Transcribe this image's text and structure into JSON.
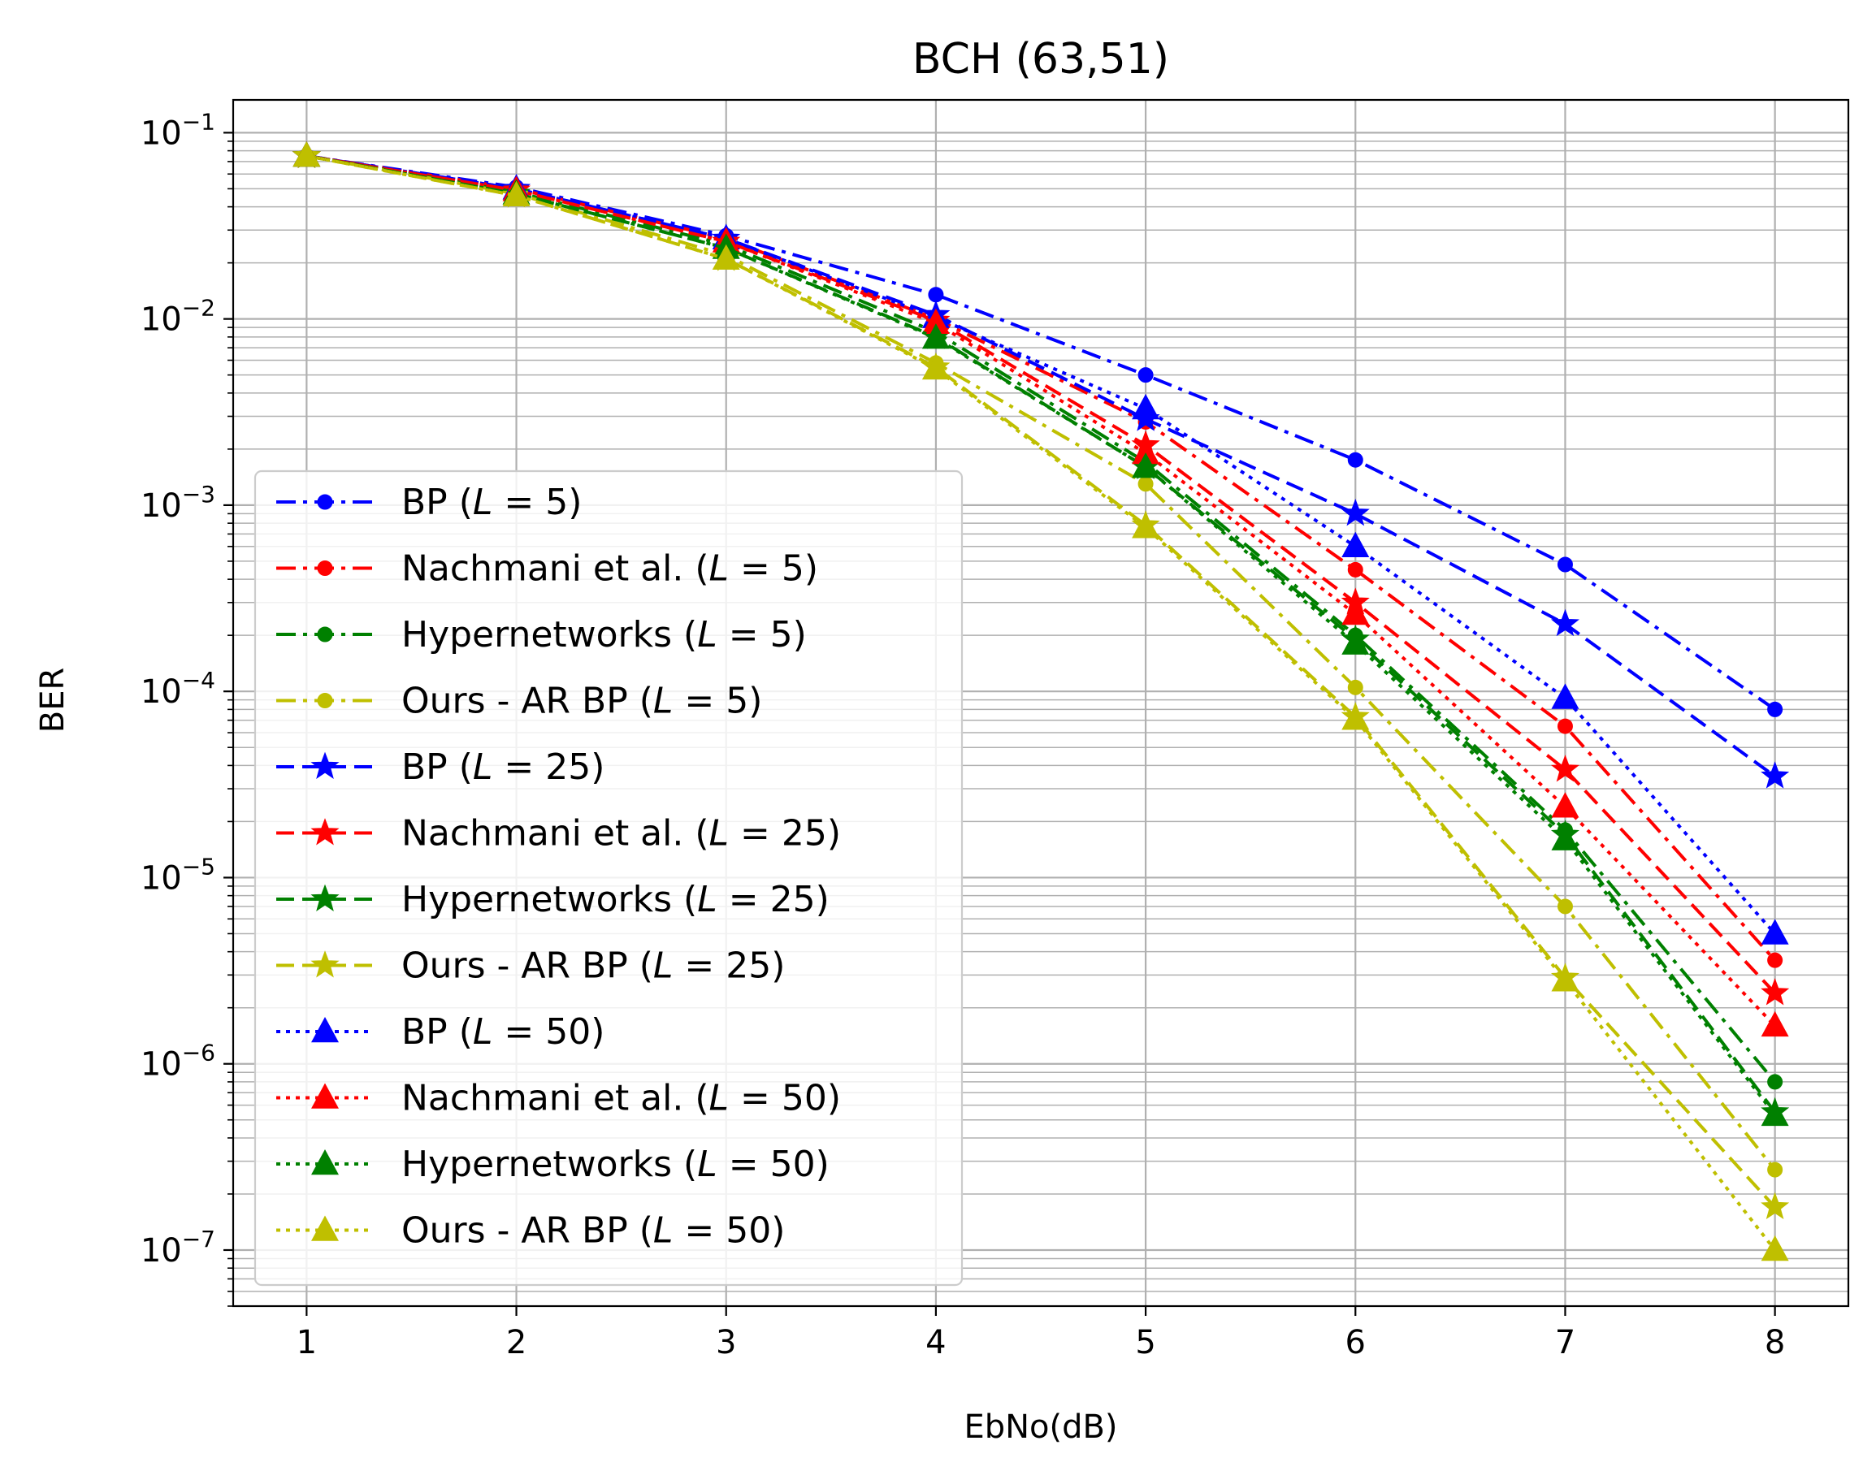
{
  "chart_data": {
    "type": "line",
    "title": "BCH (63,51)",
    "xlabel": "EbNo(dB)",
    "ylabel": "BER",
    "x": [
      1,
      2,
      3,
      4,
      5,
      6,
      7,
      8
    ],
    "xlim": [
      0.65,
      8.35
    ],
    "ylim": [
      5e-08,
      0.15
    ],
    "yscale": "log",
    "grid": "major and minor",
    "legend_position": "lower-left",
    "x_ticks": [
      "1",
      "2",
      "3",
      "4",
      "5",
      "6",
      "7",
      "8"
    ],
    "y_ticks": [
      {
        "base": "10",
        "exp": "−1",
        "value": 0.1
      },
      {
        "base": "10",
        "exp": "−2",
        "value": 0.01
      },
      {
        "base": "10",
        "exp": "−3",
        "value": 0.001
      },
      {
        "base": "10",
        "exp": "−4",
        "value": 0.0001
      },
      {
        "base": "10",
        "exp": "−5",
        "value": 1e-05
      },
      {
        "base": "10",
        "exp": "−6",
        "value": 1e-06
      },
      {
        "base": "10",
        "exp": "−7",
        "value": 1e-07
      }
    ],
    "series": [
      {
        "name": "BP",
        "L": "5",
        "color": "#0000ff",
        "dash": "dashdot",
        "marker": "circle",
        "values": [
          0.075,
          0.051,
          0.028,
          0.0135,
          0.005,
          0.00175,
          0.00048,
          8e-05
        ]
      },
      {
        "name": "Nachmani et al.",
        "L": "5",
        "color": "#ff0000",
        "dash": "dashdot",
        "marker": "circle",
        "values": [
          0.075,
          0.05,
          0.027,
          0.01,
          0.0028,
          0.00045,
          6.5e-05,
          3.6e-06
        ]
      },
      {
        "name": "Hypernetworks",
        "L": "5",
        "color": "#008000",
        "dash": "dashdot",
        "marker": "circle",
        "values": [
          0.075,
          0.048,
          0.025,
          0.0085,
          0.0017,
          0.0002,
          1.8e-05,
          8e-07
        ]
      },
      {
        "name": "Ours - AR BP",
        "L": "5",
        "color": "#bfbf00",
        "dash": "dashdot",
        "marker": "circle",
        "values": [
          0.075,
          0.047,
          0.022,
          0.0058,
          0.0013,
          0.000105,
          7e-06,
          2.7e-07
        ]
      },
      {
        "name": "BP",
        "L": "25",
        "color": "#0000ff",
        "dash": "dashed",
        "marker": "star",
        "values": [
          0.075,
          0.05,
          0.027,
          0.0105,
          0.0029,
          0.0009,
          0.00023,
          3.5e-05
        ]
      },
      {
        "name": "Nachmani et al.",
        "L": "25",
        "color": "#ff0000",
        "dash": "dashed",
        "marker": "star",
        "values": [
          0.075,
          0.049,
          0.026,
          0.0098,
          0.0021,
          0.0003,
          3.8e-05,
          2.4e-06
        ]
      },
      {
        "name": "Hypernetworks",
        "L": "25",
        "color": "#008000",
        "dash": "dashed",
        "marker": "star",
        "values": [
          0.075,
          0.047,
          0.024,
          0.008,
          0.0016,
          0.00019,
          1.7e-05,
          5.5e-07
        ]
      },
      {
        "name": "Ours - AR BP",
        "L": "25",
        "color": "#bfbf00",
        "dash": "dashed",
        "marker": "star",
        "values": [
          0.075,
          0.046,
          0.021,
          0.0055,
          0.00078,
          7.3e-05,
          2.9e-06,
          1.7e-07
        ]
      },
      {
        "name": "BP",
        "L": "50",
        "color": "#0000ff",
        "dash": "dotted",
        "marker": "triangle",
        "values": [
          0.075,
          0.05,
          0.027,
          0.0102,
          0.0033,
          0.0006,
          9.2e-05,
          5e-06
        ]
      },
      {
        "name": "Nachmani et al.",
        "L": "50",
        "color": "#ff0000",
        "dash": "dotted",
        "marker": "triangle",
        "values": [
          0.075,
          0.049,
          0.026,
          0.0095,
          0.0019,
          0.00026,
          2.4e-05,
          1.6e-06
        ]
      },
      {
        "name": "Hypernetworks",
        "L": "50",
        "color": "#008000",
        "dash": "dotted",
        "marker": "triangle",
        "values": [
          0.075,
          0.047,
          0.024,
          0.0079,
          0.0016,
          0.00018,
          1.6e-05,
          5.3e-07
        ]
      },
      {
        "name": "Ours - AR BP",
        "L": "50",
        "color": "#bfbf00",
        "dash": "dotted",
        "marker": "triangle",
        "values": [
          0.075,
          0.046,
          0.021,
          0.0054,
          0.00076,
          7.1e-05,
          2.8e-06,
          1e-07
        ]
      }
    ]
  }
}
